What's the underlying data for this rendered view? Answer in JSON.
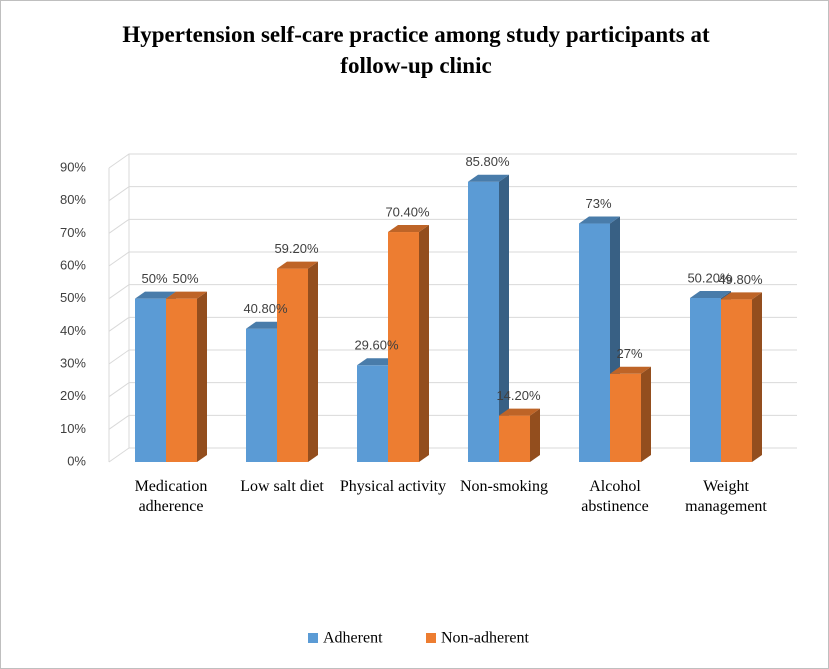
{
  "chart_data": {
    "type": "bar3d",
    "title": "Hypertension self-care practice among study participants at follow-up clinic",
    "categories": [
      "Medication adherence",
      "Low salt diet",
      "Physical activity",
      "Non-smoking",
      "Alcohol abstinence",
      "Weight management"
    ],
    "series": [
      {
        "name": "Adherent",
        "color": "#5b9bd5",
        "values": [
          50,
          40.8,
          29.6,
          85.8,
          73,
          50.2
        ],
        "value_labels": [
          "50%",
          "40.80%",
          "29.60%",
          "85.80%",
          "73%",
          "50.20%"
        ]
      },
      {
        "name": "Non-adherent",
        "color": "#ed7d31",
        "values": [
          50,
          59.2,
          70.4,
          14.2,
          27,
          49.8
        ],
        "value_labels": [
          "50%",
          "59.20%",
          "70.40%",
          "14.20%",
          "27%",
          "49.80%"
        ]
      }
    ],
    "ylim": [
      0,
      90
    ],
    "yticks": [
      {
        "value": 0,
        "label": "0%"
      },
      {
        "value": 10,
        "label": "10%"
      },
      {
        "value": 20,
        "label": "20%"
      },
      {
        "value": 30,
        "label": "30%"
      },
      {
        "value": 40,
        "label": "40%"
      },
      {
        "value": 50,
        "label": "50%"
      },
      {
        "value": 60,
        "label": "60%"
      },
      {
        "value": 70,
        "label": "70%"
      },
      {
        "value": 80,
        "label": "80%"
      },
      {
        "value": 90,
        "label": "90%"
      }
    ],
    "grid": true,
    "legend": "bottom"
  }
}
